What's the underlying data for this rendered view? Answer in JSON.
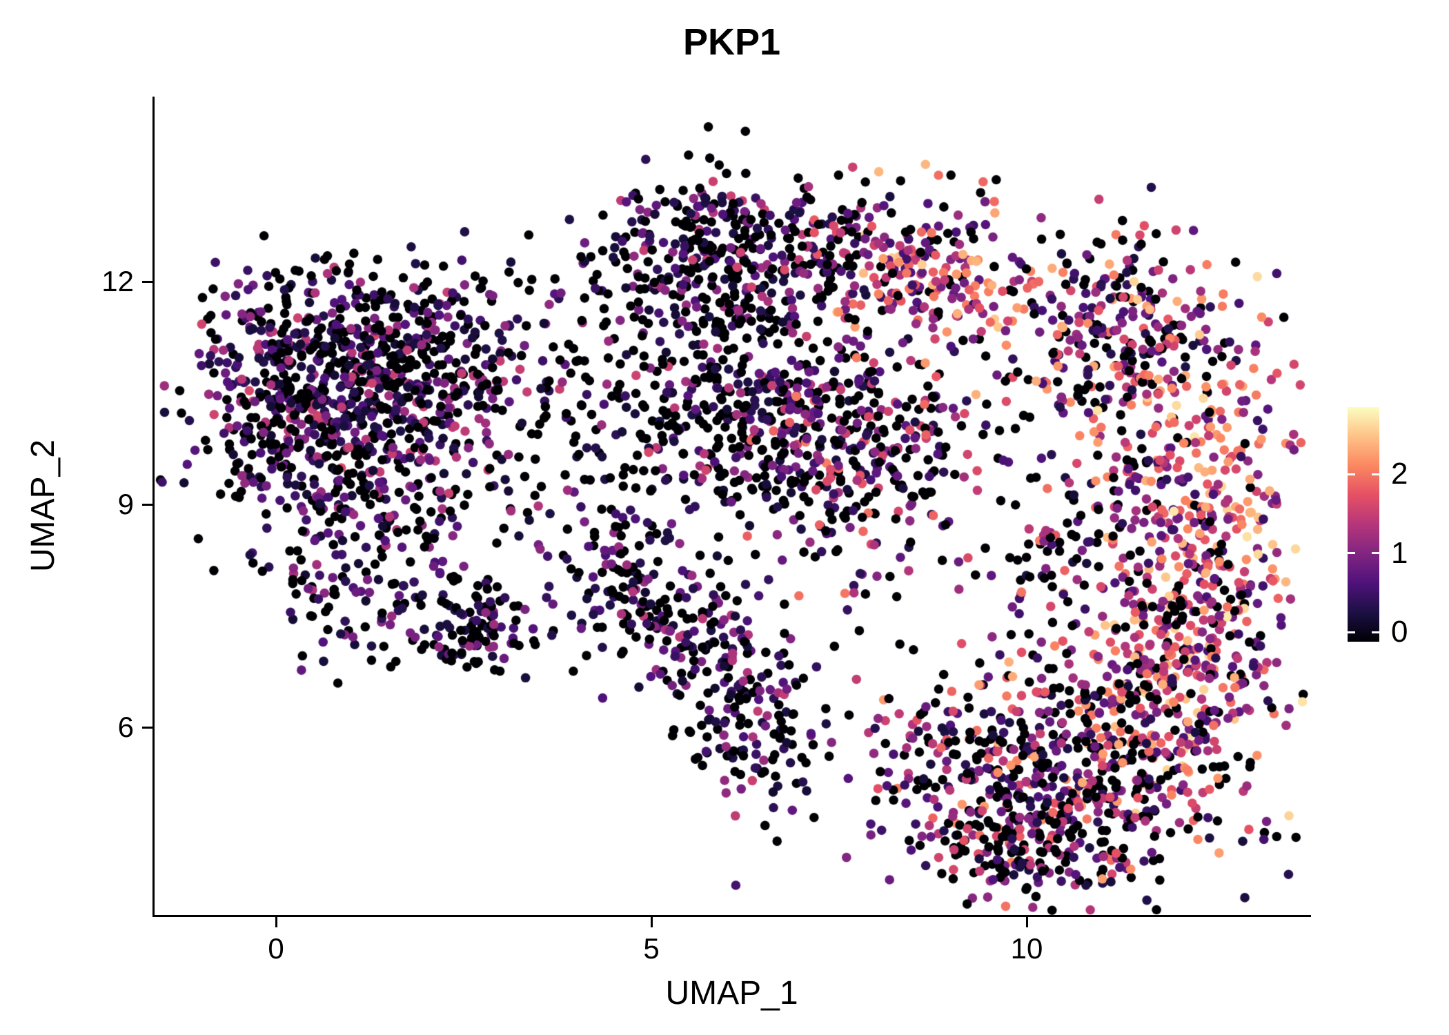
{
  "title": "PKP1",
  "axes": {
    "xlabel": "UMAP_1",
    "ylabel": "UMAP_2",
    "x_tick_labels": [
      "0",
      "5",
      "10"
    ],
    "x_tick_values": [
      0,
      5,
      10
    ],
    "y_tick_labels": [
      "12",
      "9",
      "6"
    ],
    "y_tick_values": [
      12,
      9,
      6
    ]
  },
  "colorbar": {
    "tick_labels": [
      "2",
      "1",
      "0"
    ],
    "tick_values": [
      2,
      1,
      0
    ],
    "min": 0,
    "max": 2.85
  },
  "chart_data": {
    "type": "scatter",
    "title": "PKP1",
    "xlabel": "UMAP_1",
    "ylabel": "UMAP_2",
    "xlim": [
      -1.7,
      13.8
    ],
    "ylim": [
      3.4,
      14.4
    ],
    "x_ticks": [
      0,
      5,
      10
    ],
    "y_ticks": [
      6,
      9,
      12
    ],
    "grid": false,
    "legend_position": "right-colorbar",
    "n_points_total": 4770,
    "point_radius_px": 6.8,
    "seed": 42,
    "color_scale": {
      "name": "magma",
      "domain": [
        0,
        2.85
      ],
      "legend_ticks": [
        0,
        1,
        2
      ],
      "stops": [
        [
          0.0,
          0,
          0,
          4
        ],
        [
          0.125,
          28,
          16,
          68
        ],
        [
          0.25,
          79,
          18,
          123
        ],
        [
          0.375,
          129,
          37,
          129
        ],
        [
          0.5,
          181,
          54,
          122
        ],
        [
          0.625,
          229,
          80,
          100
        ],
        [
          0.75,
          251,
          135,
          97
        ],
        [
          0.875,
          254,
          194,
          135
        ],
        [
          1.0,
          252,
          253,
          191
        ]
      ]
    },
    "clusters": [
      {
        "name": "left-blob-a",
        "n": 450,
        "cx": 0.35,
        "cy": 10.65,
        "sx": 0.85,
        "sy": 0.75,
        "p0": 0.42,
        "emin": 0.25,
        "emax": 1.7,
        "skew": 1.6
      },
      {
        "name": "left-blob-b",
        "n": 360,
        "cx": 1.85,
        "cy": 10.95,
        "sx": 0.85,
        "sy": 0.65,
        "p0": 0.45,
        "emin": 0.25,
        "emax": 1.6,
        "skew": 1.6
      },
      {
        "name": "left-blob-c",
        "n": 230,
        "cx": 1.3,
        "cy": 9.45,
        "sx": 1.0,
        "sy": 0.6,
        "p0": 0.45,
        "emin": 0.25,
        "emax": 1.6,
        "skew": 1.6
      },
      {
        "name": "left-lower",
        "n": 140,
        "cx": 1.35,
        "cy": 7.95,
        "sx": 0.85,
        "sy": 0.65,
        "p0": 0.5,
        "emin": 0.25,
        "emax": 1.4,
        "skew": 1.6
      },
      {
        "name": "left-lower-clump",
        "n": 90,
        "cx": 2.75,
        "cy": 7.3,
        "sx": 0.33,
        "sy": 0.28,
        "p0": 0.45,
        "emin": 0.3,
        "emax": 1.4,
        "skew": 1.5
      },
      {
        "name": "connector",
        "n": 130,
        "cx": 4.1,
        "cy": 9.9,
        "sx": 0.75,
        "sy": 1.05,
        "p0": 0.55,
        "emin": 0.25,
        "emax": 1.4,
        "skew": 1.6
      },
      {
        "name": "top-middle",
        "n": 280,
        "cx": 5.8,
        "cy": 12.35,
        "sx": 0.8,
        "sy": 0.55,
        "p0": 0.5,
        "emin": 0.25,
        "emax": 1.6,
        "skew": 1.6
      },
      {
        "name": "top-middle-east",
        "n": 80,
        "cx": 7.3,
        "cy": 12.5,
        "sx": 0.5,
        "sy": 0.45,
        "p0": 0.4,
        "emin": 0.3,
        "emax": 2.0,
        "skew": 1.4
      },
      {
        "name": "middle",
        "n": 460,
        "cx": 6.3,
        "cy": 10.3,
        "sx": 1.05,
        "sy": 0.95,
        "p0": 0.5,
        "emin": 0.25,
        "emax": 1.7,
        "skew": 1.6
      },
      {
        "name": "middle-right",
        "n": 260,
        "cx": 7.9,
        "cy": 9.6,
        "sx": 0.75,
        "sy": 0.8,
        "p0": 0.4,
        "emin": 0.3,
        "emax": 2.1,
        "skew": 1.4
      },
      {
        "name": "trail-a",
        "n": 90,
        "cx": 4.7,
        "cy": 7.8,
        "sx": 0.45,
        "sy": 0.45,
        "p0": 0.5,
        "emin": 0.25,
        "emax": 1.4,
        "skew": 1.6
      },
      {
        "name": "trail-b",
        "n": 110,
        "cx": 5.7,
        "cy": 7.1,
        "sx": 0.45,
        "sy": 0.5,
        "p0": 0.45,
        "emin": 0.25,
        "emax": 1.5,
        "skew": 1.5
      },
      {
        "name": "trail-c",
        "n": 130,
        "cx": 6.4,
        "cy": 6.0,
        "sx": 0.5,
        "sy": 0.6,
        "p0": 0.45,
        "emin": 0.25,
        "emax": 1.6,
        "skew": 1.5
      },
      {
        "name": "top-right-pink",
        "n": 200,
        "cx": 8.8,
        "cy": 12.15,
        "sx": 0.7,
        "sy": 0.5,
        "p0": 0.22,
        "emin": 0.5,
        "emax": 2.6,
        "skew": 1.0
      },
      {
        "name": "right-arc",
        "n": 300,
        "cx": 11.2,
        "cy": 11.2,
        "sx": 0.85,
        "sy": 0.75,
        "p0": 0.32,
        "emin": 0.3,
        "emax": 2.4,
        "skew": 1.2
      },
      {
        "name": "right-edge",
        "n": 430,
        "cx": 12.35,
        "cy": 8.6,
        "sx": 0.65,
        "sy": 1.5,
        "p0": 0.15,
        "emin": 0.5,
        "emax": 2.75,
        "skew": 1.0
      },
      {
        "name": "right-edge-low",
        "n": 160,
        "cx": 12.0,
        "cy": 6.6,
        "sx": 0.6,
        "sy": 0.7,
        "p0": 0.2,
        "emin": 0.4,
        "emax": 2.6,
        "skew": 1.0
      },
      {
        "name": "right-mid",
        "n": 160,
        "cx": 10.7,
        "cy": 8.1,
        "sx": 0.8,
        "sy": 1.0,
        "p0": 0.4,
        "emin": 0.3,
        "emax": 2.2,
        "skew": 1.3
      },
      {
        "name": "bottom-right",
        "n": 500,
        "cx": 10.6,
        "cy": 5.35,
        "sx": 1.05,
        "sy": 0.8,
        "p0": 0.38,
        "emin": 0.3,
        "emax": 2.4,
        "skew": 1.3
      },
      {
        "name": "bottom-right-tail",
        "n": 150,
        "cx": 9.9,
        "cy": 4.5,
        "sx": 0.65,
        "sy": 0.4,
        "p0": 0.4,
        "emin": 0.3,
        "emax": 2.0,
        "skew": 1.4
      },
      {
        "name": "bottom-left-spur",
        "n": 60,
        "cx": 8.6,
        "cy": 5.6,
        "sx": 0.5,
        "sy": 0.45,
        "p0": 0.4,
        "emin": 0.3,
        "emax": 2.0,
        "skew": 1.3
      }
    ]
  }
}
